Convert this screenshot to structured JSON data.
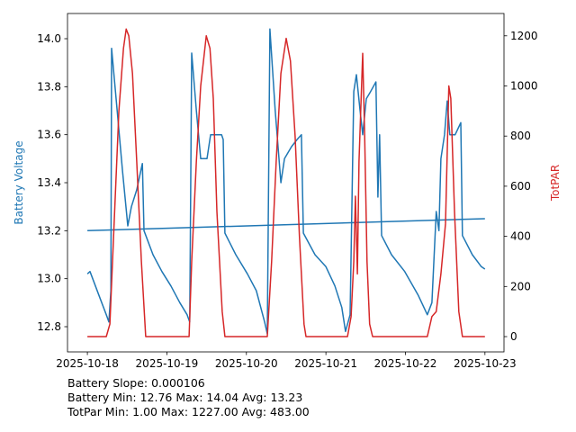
{
  "chart_data": {
    "type": "line",
    "title": "",
    "xlabel": "",
    "ylabel_left": "Battery Voltage",
    "ylabel_right": "TotPAR",
    "xlim": [
      "2025-10-17 18:00",
      "2025-10-23 05:45"
    ],
    "ylim_left": [
      12.695,
      14.105
    ],
    "ylim_right": [
      -61,
      1289
    ],
    "x_ticks": [
      "2025-10-18",
      "2025-10-19",
      "2025-10-20",
      "2025-10-21",
      "2025-10-22",
      "2025-10-23"
    ],
    "y_ticks_left": [
      "12.8",
      "13.0",
      "13.2",
      "13.4",
      "13.6",
      "13.8",
      "14.0"
    ],
    "y_ticks_right": [
      "0",
      "200",
      "400",
      "600",
      "800",
      "1000",
      "1200"
    ],
    "grid": false,
    "colors": {
      "battery": "#1f77b4",
      "totpar": "#d62728",
      "left_label": "#1f77b4",
      "right_label": "#d62728"
    },
    "series": [
      {
        "axis": "left",
        "color": "#1f77b4",
        "x": [
          "2025-10-18 00:00",
          "2025-10-18 00:48",
          "2025-10-18 03:30",
          "2025-10-18 05:42",
          "2025-10-18 06:30",
          "2025-10-18 07:06",
          "2025-10-18 07:18",
          "2025-10-18 09:00",
          "2025-10-18 10:36",
          "2025-10-18 12:12",
          "2025-10-18 13:18",
          "2025-10-18 14:54",
          "2025-10-18 16:36",
          "2025-10-18 17:06",
          "2025-10-18 19:48",
          "2025-10-18 22:30",
          "2025-10-19 01:12",
          "2025-10-19 03:54",
          "2025-10-19 06:06",
          "2025-10-19 06:54",
          "2025-10-19 07:30",
          "2025-10-19 08:54",
          "2025-10-19 10:12",
          "2025-10-19 12:06",
          "2025-10-19 13:12",
          "2025-10-19 16:30",
          "2025-10-19 17:00",
          "2025-10-19 17:30",
          "2025-10-19 20:48",
          "2025-10-20 00:18",
          "2025-10-20 03:00",
          "2025-10-20 05:30",
          "2025-10-20 06:18",
          "2025-10-20 07:06",
          "2025-10-20 08:42",
          "2025-10-20 10:24",
          "2025-10-20 11:30",
          "2025-10-20 13:36",
          "2025-10-20 15:18",
          "2025-10-20 16:36",
          "2025-10-20 17:12",
          "2025-10-20 20:42",
          "2025-10-21 00:00",
          "2025-10-21 02:42",
          "2025-10-21 04:48",
          "2025-10-21 05:54",
          "2025-10-21 07:18",
          "2025-10-21 08:24",
          "2025-10-21 09:12",
          "2025-10-21 10:18",
          "2025-10-21 11:06",
          "2025-10-21 12:12",
          "2025-10-21 13:30",
          "2025-10-21 15:06",
          "2025-10-21 15:42",
          "2025-10-21 16:12",
          "2025-10-21 16:48",
          "2025-10-21 19:48",
          "2025-10-21 23:48",
          "2025-10-22 03:54",
          "2025-10-22 06:36",
          "2025-10-22 08:00",
          "2025-10-22 09:18",
          "2025-10-22 10:06",
          "2025-10-22 10:42",
          "2025-10-22 11:48",
          "2025-10-22 12:36",
          "2025-10-22 13:24",
          "2025-10-22 15:00",
          "2025-10-22 16:42",
          "2025-10-22 17:12",
          "2025-10-22 20:12",
          "2025-10-22 22:54",
          "2025-10-23 00:00"
        ],
        "y": [
          13.02,
          13.03,
          12.93,
          12.85,
          12.82,
          12.95,
          13.96,
          13.7,
          13.45,
          13.22,
          13.3,
          13.37,
          13.48,
          13.2,
          13.1,
          13.03,
          12.97,
          12.9,
          12.85,
          12.82,
          13.94,
          13.7,
          13.5,
          13.5,
          13.6,
          13.6,
          13.58,
          13.19,
          13.1,
          13.02,
          12.95,
          12.82,
          12.77,
          14.04,
          13.7,
          13.4,
          13.5,
          13.55,
          13.58,
          13.6,
          13.19,
          13.1,
          13.05,
          12.97,
          12.88,
          12.78,
          12.85,
          13.78,
          13.85,
          13.7,
          13.6,
          13.75,
          13.78,
          13.82,
          13.34,
          13.6,
          13.18,
          13.1,
          13.03,
          12.93,
          12.85,
          12.9,
          13.28,
          13.2,
          13.5,
          13.6,
          13.74,
          13.6,
          13.6,
          13.65,
          13.18,
          13.1,
          13.05,
          13.04
        ]
      },
      {
        "axis": "left",
        "color": "#1f77b4",
        "x": [
          "2025-10-18 00:00",
          "2025-10-23 00:00"
        ],
        "y": [
          13.2,
          13.25
        ]
      },
      {
        "axis": "right",
        "color": "#d62728",
        "x": [
          "2025-10-18 00:00",
          "2025-10-18 05:42",
          "2025-10-18 06:48",
          "2025-10-18 07:54",
          "2025-10-18 09:30",
          "2025-10-18 10:54",
          "2025-10-18 11:42",
          "2025-10-18 12:30",
          "2025-10-18 13:36",
          "2025-10-18 14:54",
          "2025-10-18 16:18",
          "2025-10-18 17:36",
          "2025-10-19 06:42",
          "2025-10-19 07:30",
          "2025-10-19 08:54",
          "2025-10-19 10:12",
          "2025-10-19 11:54",
          "2025-10-19 13:00",
          "2025-10-19 14:00",
          "2025-10-19 15:06",
          "2025-10-19 16:42",
          "2025-10-19 17:30",
          "2025-10-20 06:18",
          "2025-10-20 07:36",
          "2025-10-20 09:00",
          "2025-10-20 10:24",
          "2025-10-20 12:00",
          "2025-10-20 13:18",
          "2025-10-20 14:42",
          "2025-10-20 16:00",
          "2025-10-20 17:24",
          "2025-10-20 18:00",
          "2025-10-21 06:30",
          "2025-10-21 07:36",
          "2025-10-21 08:24",
          "2025-10-21 08:54",
          "2025-10-21 09:30",
          "2025-10-21 10:00",
          "2025-10-21 11:06",
          "2025-10-21 11:42",
          "2025-10-21 12:24",
          "2025-10-21 13:12",
          "2025-10-21 14:06",
          "2025-10-22 06:36",
          "2025-10-22 08:00",
          "2025-10-22 09:18",
          "2025-10-22 10:42",
          "2025-10-22 12:06",
          "2025-10-22 13:06",
          "2025-10-22 13:42",
          "2025-10-22 14:48",
          "2025-10-22 16:06",
          "2025-10-22 17:12",
          "2025-10-23 00:00"
        ],
        "y": [
          0,
          0,
          50,
          400,
          900,
          1150,
          1227,
          1200,
          1050,
          700,
          300,
          0,
          0,
          300,
          700,
          1000,
          1200,
          1150,
          950,
          500,
          100,
          0,
          0,
          300,
          700,
          1050,
          1190,
          1100,
          800,
          400,
          50,
          0,
          0,
          80,
          300,
          560,
          250,
          700,
          1130,
          800,
          300,
          50,
          0,
          0,
          80,
          100,
          250,
          450,
          1000,
          950,
          500,
          100,
          0,
          0
        ]
      }
    ],
    "annotations": [
      "Battery Slope: 0.000106",
      "Battery Min: 12.76 Max: 14.04 Avg: 13.23",
      "TotPar Min: 1.00 Max: 1227.00 Avg: 483.00"
    ]
  }
}
